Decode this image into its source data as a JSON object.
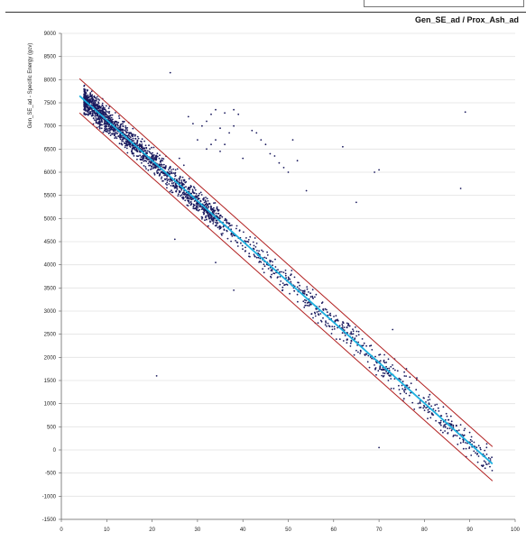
{
  "window": {
    "title_box": ""
  },
  "chart_data": {
    "type": "scatter",
    "title": "Gen_SE_ad / Prox_Ash_ad",
    "xlabel": "",
    "ylabel": "Gen_SE_ad - Specific Energy (gcv)",
    "xlim": [
      0,
      100
    ],
    "ylim": [
      -1500,
      9000
    ],
    "x_ticks": [
      0,
      10,
      20,
      30,
      40,
      50,
      60,
      70,
      80,
      90,
      100
    ],
    "y_ticks": [
      -1500,
      -1000,
      -500,
      0,
      500,
      1000,
      1500,
      2000,
      2500,
      3000,
      3500,
      4000,
      4500,
      5000,
      5500,
      6000,
      6500,
      7000,
      7500,
      8000,
      8500,
      9000
    ],
    "grid": "horizontal",
    "colors": {
      "points": "#1a1a5e",
      "regression": "#1ab0e0",
      "bounds": "#b22222"
    },
    "regression_line": {
      "x": [
        4,
        95
      ],
      "y": [
        7650,
        -300
      ]
    },
    "upper_bound": {
      "x": [
        4,
        95
      ],
      "y": [
        8020,
        70
      ]
    },
    "lower_bound": {
      "x": [
        4,
        95
      ],
      "y": [
        7280,
        -670
      ]
    },
    "main_trend": {
      "slope": -87.4,
      "intercept": 8000,
      "x_range": [
        5,
        95
      ],
      "density": "dense below x=35, sparse above"
    },
    "outliers": [
      {
        "x": 24,
        "y": 8150
      },
      {
        "x": 34,
        "y": 7350
      },
      {
        "x": 36,
        "y": 7280
      },
      {
        "x": 33,
        "y": 7250
      },
      {
        "x": 32,
        "y": 7100
      },
      {
        "x": 31,
        "y": 7000
      },
      {
        "x": 35,
        "y": 6950
      },
      {
        "x": 38,
        "y": 7000
      },
      {
        "x": 39,
        "y": 7250
      },
      {
        "x": 38,
        "y": 7350
      },
      {
        "x": 37,
        "y": 6850
      },
      {
        "x": 36,
        "y": 6600
      },
      {
        "x": 34,
        "y": 6700
      },
      {
        "x": 33,
        "y": 6600
      },
      {
        "x": 32,
        "y": 6500
      },
      {
        "x": 30,
        "y": 6700
      },
      {
        "x": 29,
        "y": 7050
      },
      {
        "x": 28,
        "y": 7200
      },
      {
        "x": 35,
        "y": 6450
      },
      {
        "x": 40,
        "y": 6300
      },
      {
        "x": 42,
        "y": 6900
      },
      {
        "x": 43,
        "y": 6850
      },
      {
        "x": 44,
        "y": 6700
      },
      {
        "x": 45,
        "y": 6600
      },
      {
        "x": 46,
        "y": 6400
      },
      {
        "x": 47,
        "y": 6350
      },
      {
        "x": 48,
        "y": 6200
      },
      {
        "x": 49,
        "y": 6100
      },
      {
        "x": 50,
        "y": 6000
      },
      {
        "x": 51,
        "y": 6700
      },
      {
        "x": 52,
        "y": 6250
      },
      {
        "x": 54,
        "y": 5600
      },
      {
        "x": 62,
        "y": 6550
      },
      {
        "x": 65,
        "y": 5350
      },
      {
        "x": 69,
        "y": 6000
      },
      {
        "x": 70,
        "y": 6050
      },
      {
        "x": 89,
        "y": 7300
      },
      {
        "x": 88,
        "y": 5650
      },
      {
        "x": 21,
        "y": 1600
      },
      {
        "x": 25,
        "y": 4550
      },
      {
        "x": 34,
        "y": 4050
      },
      {
        "x": 38,
        "y": 3450
      },
      {
        "x": 70,
        "y": 50
      },
      {
        "x": 73,
        "y": 2600
      },
      {
        "x": 26,
        "y": 6300
      },
      {
        "x": 27,
        "y": 6150
      }
    ]
  }
}
